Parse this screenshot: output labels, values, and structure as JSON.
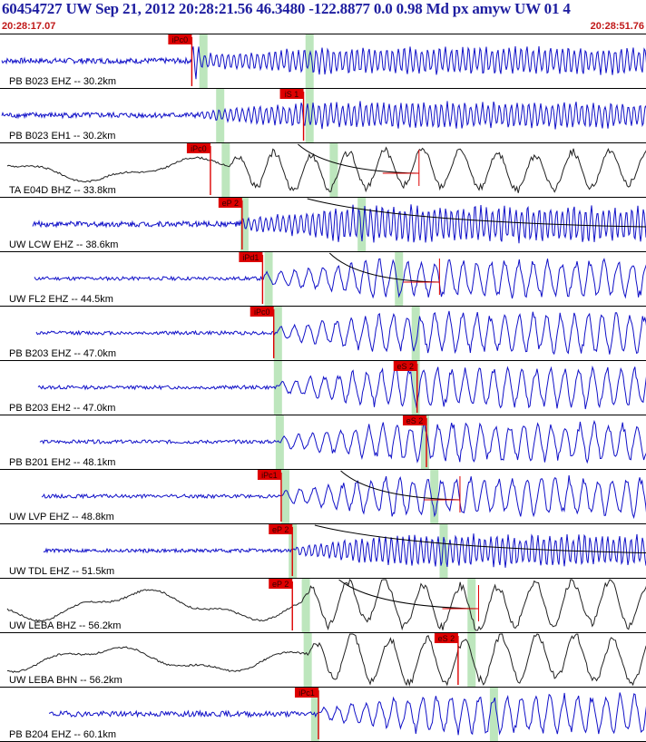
{
  "header": {
    "title": "60454727 UW Sep 21, 2012 20:28:21.56   46.3480 -122.8877  0.0 0.98 Md px amyw UW 01   4",
    "time_start": "20:28:17.07",
    "time_end": "20:28:51.76"
  },
  "chart_data": {
    "type": "seismogram",
    "time_window": [
      "20:28:17.07",
      "20:28:51.76"
    ],
    "colors": {
      "trace": "#1010c8",
      "broadband_trace": "#202020",
      "pick": "#dd0000",
      "s_window": "#bde6bd",
      "divider": "#000000"
    },
    "traces": [
      {
        "station": "PB B023 EHZ -- 30.2km",
        "color": "blue",
        "pick": {
          "label": "iPc0",
          "t": 10.3
        },
        "s_pick": null,
        "window_t": 10.9,
        "window2_t": 16.6,
        "arrival_t": 10.3,
        "end_t": 35.0,
        "pre_amp": 3,
        "post_amp": 14,
        "freq": "high",
        "coda": false
      },
      {
        "station": "PB B023 EH1 -- 30.2km",
        "color": "blue",
        "pick": null,
        "s_pick": {
          "label": "iS 1",
          "t": 16.3
        },
        "window_t": 11.8,
        "window2_t": 16.6,
        "arrival_t": 10.8,
        "end_t": 35.0,
        "pre_amp": 3,
        "post_amp": 13,
        "freq": "high",
        "coda": false
      },
      {
        "station": "TA E04D BHZ -- 33.8km",
        "color": "black",
        "pick": {
          "label": "iPc0",
          "t": 11.3
        },
        "s_pick": null,
        "window_t": 12.1,
        "window2_t": 17.9,
        "arrival_t": 12.3,
        "end_t": 35.9,
        "pre_amp": 10,
        "post_amp": 20,
        "freq": "low",
        "coda": {
          "t_start": 16.0,
          "t_end": 22.5
        }
      },
      {
        "station": "UW LCW EHZ -- 38.6km",
        "color": "blue",
        "pick": {
          "label": "eP 2",
          "t": 13.0
        },
        "s_pick": null,
        "window_t": 13.1,
        "window2_t": 19.4,
        "arrival_t": 13.0,
        "end_t": 36.7,
        "pre_amp": 3,
        "post_amp": 18,
        "freq": "high",
        "coda": {
          "t_start": 16.5,
          "t_end": 38.9
        }
      },
      {
        "station": "UW FL2 EHZ -- 44.5km",
        "color": "blue",
        "pick": {
          "label": "iPd1",
          "t": 14.1
        },
        "s_pick": null,
        "window_t": 14.4,
        "window2_t": 21.4,
        "arrival_t": 14.2,
        "end_t": 38.0,
        "pre_amp": 2,
        "post_amp": 19,
        "freq": "mid",
        "coda": {
          "t_start": 17.7,
          "t_end": 23.6
        }
      },
      {
        "station": "PB B203 EHZ -- 47.0km",
        "color": "blue",
        "pick": {
          "label": "iPc0",
          "t": 14.7
        },
        "s_pick": null,
        "window_t": 14.9,
        "window2_t": 22.3,
        "arrival_t": 14.9,
        "end_t": 38.0,
        "pre_amp": 2,
        "post_amp": 20,
        "freq": "mid",
        "coda": false
      },
      {
        "station": "PB B203 EH2 -- 47.0km",
        "color": "blue",
        "pick": null,
        "s_pick": {
          "label": "eS 2",
          "t": 22.4
        },
        "window_t": 14.9,
        "window2_t": 22.3,
        "arrival_t": 15.0,
        "end_t": 38.0,
        "pre_amp": 2,
        "post_amp": 20,
        "freq": "mid",
        "coda": false
      },
      {
        "station": "PB B201 EH2 -- 48.1km",
        "color": "blue",
        "pick": null,
        "s_pick": {
          "label": "eS 2",
          "t": 22.9
        },
        "window_t": 15.0,
        "window2_t": 22.8,
        "arrival_t": 15.1,
        "end_t": 38.5,
        "pre_amp": 2,
        "post_amp": 19,
        "freq": "mid",
        "coda": false
      },
      {
        "station": "UW LVP EHZ -- 48.8km",
        "color": "blue",
        "pick": {
          "label": "iPc1",
          "t": 15.1
        },
        "s_pick": null,
        "window_t": 15.3,
        "window2_t": 23.3,
        "arrival_t": 15.2,
        "end_t": 38.8,
        "pre_amp": 2,
        "post_amp": 20,
        "freq": "mid",
        "coda": {
          "t_start": 18.3,
          "t_end": 24.7
        }
      },
      {
        "station": "UW TDL EHZ -- 51.5km",
        "color": "blue",
        "pick": {
          "label": "eP 2",
          "t": 15.7
        },
        "s_pick": null,
        "window_t": 15.7,
        "window2_t": 23.8,
        "arrival_t": 15.9,
        "end_t": 39.5,
        "pre_amp": 2,
        "post_amp": 16,
        "freq": "high",
        "coda": {
          "t_start": 16.9,
          "t_end": 40.2
        }
      },
      {
        "station": "UW LEBA BHZ -- 56.2km",
        "color": "black",
        "pick": {
          "label": "eP 2",
          "t": 15.7
        },
        "s_pick": null,
        "window_t": 16.4,
        "window2_t": 25.3,
        "arrival_t": 16.2,
        "end_t": 40.2,
        "pre_amp": 13,
        "post_amp": 24,
        "freq": "low",
        "coda": {
          "t_start": 18.2,
          "t_end": 25.7
        }
      },
      {
        "station": "UW LEBA BHN -- 56.2km",
        "color": "black",
        "pick": null,
        "s_pick": {
          "label": "eS 2",
          "t": 24.6
        },
        "window_t": 16.5,
        "window2_t": 25.3,
        "arrival_t": 16.5,
        "end_t": 40.2,
        "pre_amp": 11,
        "post_amp": 24,
        "freq": "low",
        "coda": false
      },
      {
        "station": "PB B204 EHZ -- 60.1km",
        "color": "blue",
        "pick": {
          "label": "iPc1",
          "t": 17.1
        },
        "s_pick": null,
        "window_t": 16.9,
        "window2_t": 26.5,
        "arrival_t": 17.2,
        "end_t": 40.9,
        "pre_amp": 3,
        "post_amp": 20,
        "freq": "mid",
        "coda": false
      }
    ]
  }
}
